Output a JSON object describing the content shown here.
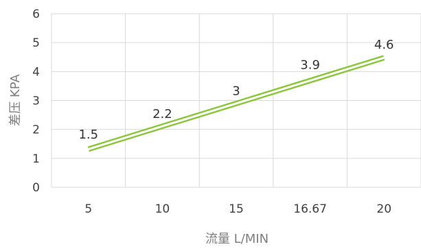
{
  "chart_data": {
    "type": "line",
    "categories": [
      "5",
      "10",
      "15",
      "16.67",
      "20"
    ],
    "series": [
      {
        "values": [
          1.5,
          2.2,
          3,
          3.9,
          4.6
        ],
        "color": "#8dc63f"
      }
    ],
    "data_labels": [
      "1.5",
      "2.2",
      "3",
      "3.9",
      "4.6"
    ],
    "ylim": [
      0,
      6
    ],
    "yticks": [
      "0",
      "1",
      "2",
      "3",
      "4",
      "5",
      "6"
    ],
    "xlabel": "流量 L/MIN",
    "ylabel": "差压 KPA",
    "grid": true,
    "legend": "none"
  }
}
